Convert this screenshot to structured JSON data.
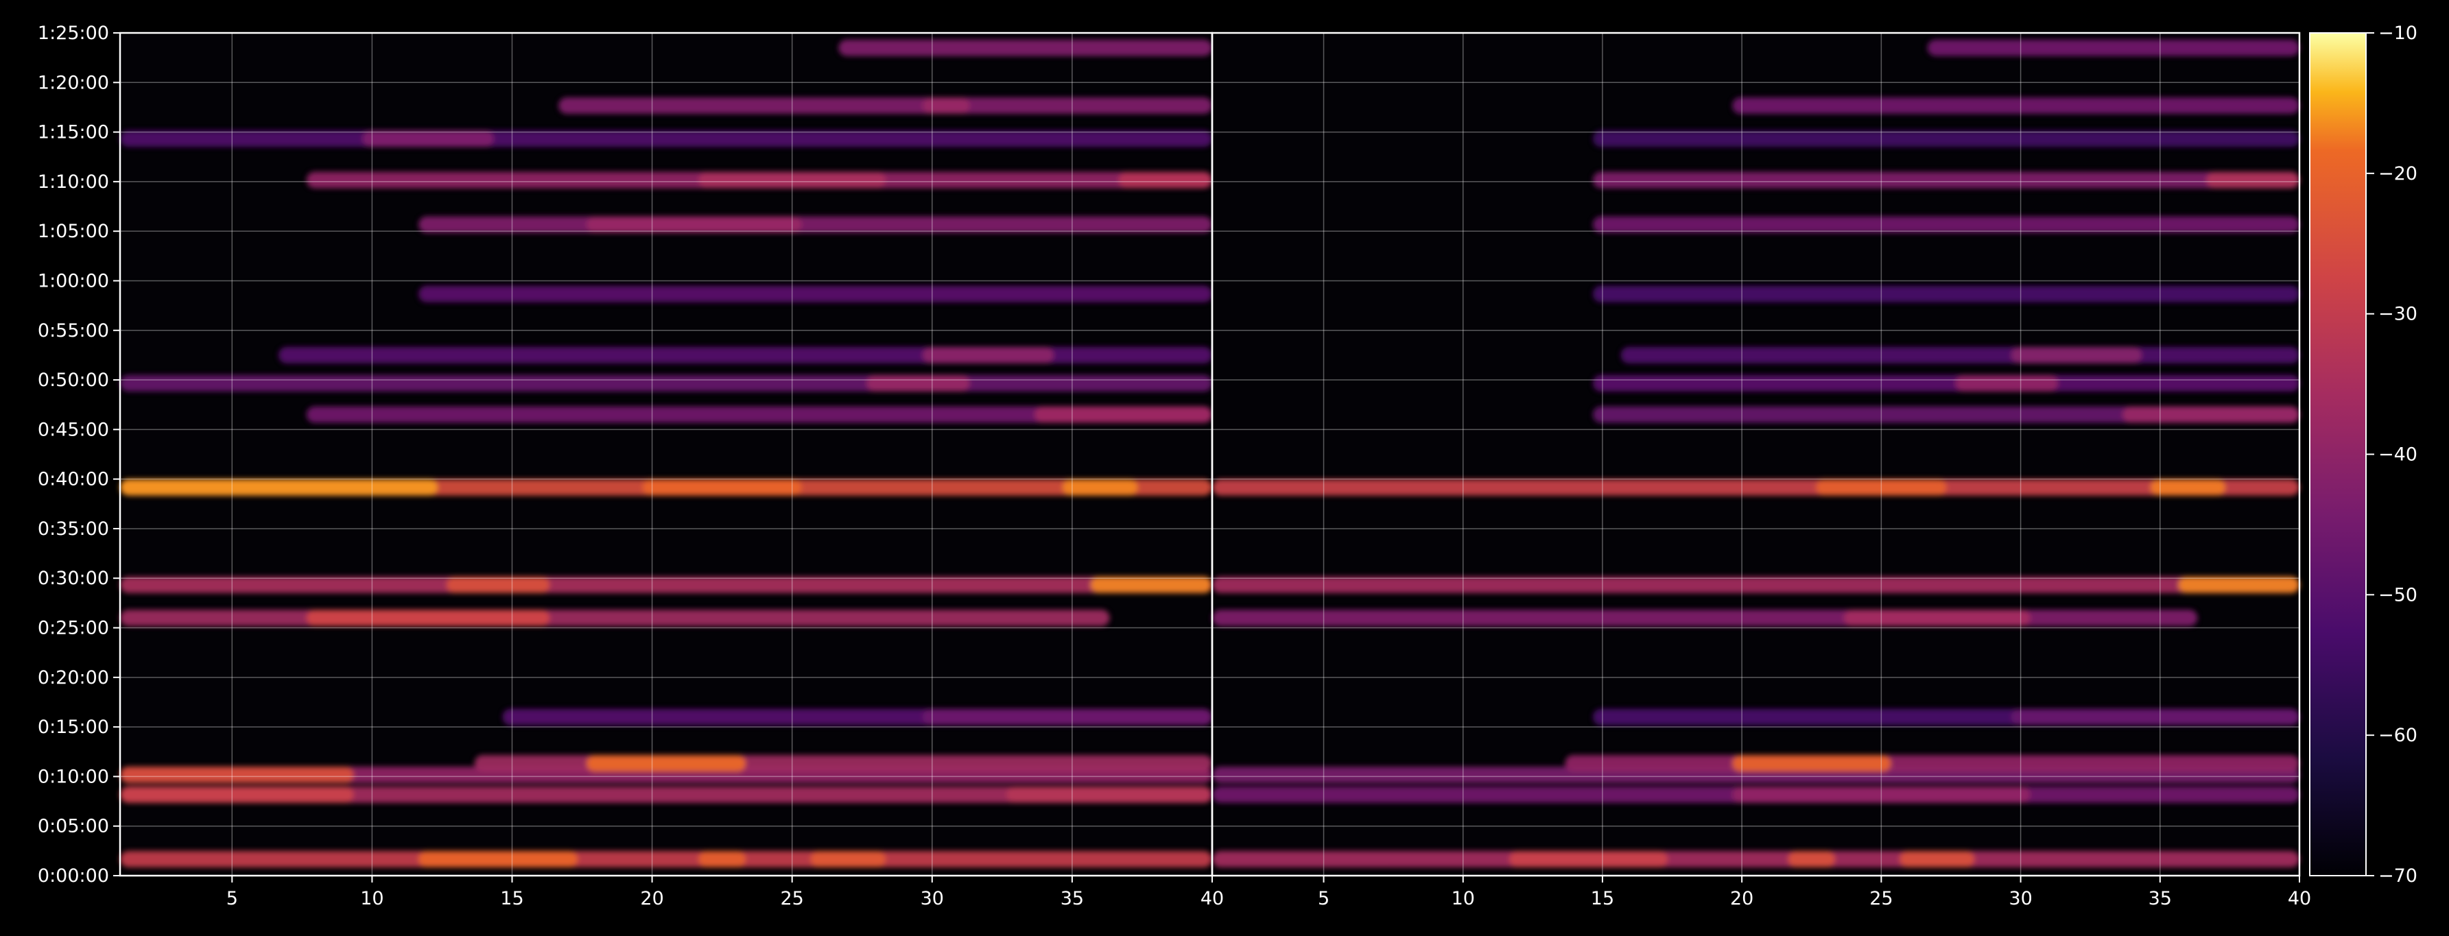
{
  "chart_data": {
    "type": "heatmap",
    "title": "",
    "xlabel": "",
    "ylabel": "",
    "grid": true,
    "panels": [
      {
        "name": "",
        "xlim": [
          1,
          40
        ],
        "xticks": [
          5,
          10,
          15,
          20,
          25,
          30,
          35,
          40
        ]
      },
      {
        "name": "",
        "xlim": [
          1,
          40
        ],
        "xticks": [
          5,
          10,
          15,
          20,
          25,
          30,
          35,
          40
        ]
      }
    ],
    "ylim_seconds": [
      0,
      5100
    ],
    "yticks": [
      {
        "value": 0,
        "label": "0:00:00"
      },
      {
        "value": 300,
        "label": "0:05:00"
      },
      {
        "value": 600,
        "label": "0:10:00"
      },
      {
        "value": 900,
        "label": "0:15:00"
      },
      {
        "value": 1200,
        "label": "0:20:00"
      },
      {
        "value": 1500,
        "label": "0:25:00"
      },
      {
        "value": 1800,
        "label": "0:30:00"
      },
      {
        "value": 2100,
        "label": "0:35:00"
      },
      {
        "value": 2400,
        "label": "0:40:00"
      },
      {
        "value": 2700,
        "label": "0:45:00"
      },
      {
        "value": 3000,
        "label": "0:50:00"
      },
      {
        "value": 3300,
        "label": "0:55:00"
      },
      {
        "value": 3600,
        "label": "1:00:00"
      },
      {
        "value": 3900,
        "label": "1:05:00"
      },
      {
        "value": 4200,
        "label": "1:10:00"
      },
      {
        "value": 4500,
        "label": "1:15:00"
      },
      {
        "value": 4800,
        "label": "1:20:00"
      },
      {
        "value": 5100,
        "label": "1:25:00"
      }
    ],
    "colorbar": {
      "colormap": "inferno",
      "range": [
        -70,
        -10
      ],
      "ticks": [
        {
          "value": -10,
          "label": "−10"
        },
        {
          "value": -20,
          "label": "−20"
        },
        {
          "value": -30,
          "label": "−30"
        },
        {
          "value": -40,
          "label": "−40"
        },
        {
          "value": -50,
          "label": "−50"
        },
        {
          "value": -60,
          "label": "−60"
        },
        {
          "value": -70,
          "label": "−70"
        }
      ]
    },
    "rows": [
      {
        "t": 100,
        "panel1": [
          [
            1,
            40,
            -34
          ],
          [
            12,
            17,
            -26
          ],
          [
            22,
            23,
            -27
          ],
          [
            26,
            28,
            -28
          ]
        ],
        "panel2": [
          [
            1,
            40,
            -40
          ],
          [
            12,
            17,
            -33
          ],
          [
            22,
            23,
            -30
          ],
          [
            26,
            28,
            -30
          ]
        ]
      },
      {
        "t": 490,
        "panel1": [
          [
            1,
            40,
            -40
          ],
          [
            1,
            9,
            -33
          ],
          [
            33,
            40,
            -37
          ]
        ],
        "panel2": [
          [
            1,
            40,
            -48
          ],
          [
            20,
            30,
            -43
          ]
        ]
      },
      {
        "t": 610,
        "panel1": [
          [
            1,
            40,
            -43
          ],
          [
            1,
            9,
            -30
          ]
        ],
        "panel2": [
          [
            1,
            40,
            -47
          ]
        ]
      },
      {
        "t": 680,
        "panel1": [
          [
            14,
            40,
            -41
          ],
          [
            18,
            23,
            -25
          ]
        ],
        "panel2": [
          [
            14,
            40,
            -43
          ],
          [
            20,
            25,
            -26
          ]
        ]
      },
      {
        "t": 960,
        "panel1": [
          [
            15,
            40,
            -53
          ],
          [
            30,
            40,
            -49
          ]
        ],
        "panel2": [
          [
            15,
            40,
            -55
          ],
          [
            30,
            40,
            -50
          ]
        ]
      },
      {
        "t": 1560,
        "panel1": [
          [
            1,
            36,
            -41
          ],
          [
            8,
            16,
            -32
          ]
        ],
        "panel2": [
          [
            1,
            36,
            -46
          ],
          [
            24,
            30,
            -40
          ]
        ]
      },
      {
        "t": 1760,
        "panel1": [
          [
            1,
            40,
            -39
          ],
          [
            13,
            16,
            -30
          ],
          [
            36,
            40,
            -22
          ]
        ],
        "panel2": [
          [
            1,
            40,
            -40
          ],
          [
            36,
            40,
            -22
          ]
        ]
      },
      {
        "t": 2350,
        "panel1": [
          [
            1,
            40,
            -30
          ],
          [
            1,
            12,
            -20
          ],
          [
            20,
            25,
            -26
          ],
          [
            35,
            37,
            -22
          ]
        ],
        "panel2": [
          [
            1,
            40,
            -33
          ],
          [
            23,
            27,
            -27
          ],
          [
            35,
            37,
            -23
          ]
        ]
      },
      {
        "t": 2790,
        "panel1": [
          [
            8,
            40,
            -48
          ],
          [
            34,
            40,
            -41
          ]
        ],
        "panel2": [
          [
            15,
            40,
            -50
          ],
          [
            34,
            40,
            -42
          ]
        ]
      },
      {
        "t": 2980,
        "panel1": [
          [
            1,
            40,
            -50
          ],
          [
            28,
            31,
            -42
          ]
        ],
        "panel2": [
          [
            15,
            40,
            -52
          ],
          [
            28,
            31,
            -43
          ]
        ]
      },
      {
        "t": 3150,
        "panel1": [
          [
            7,
            40,
            -53
          ],
          [
            30,
            34,
            -44
          ]
        ],
        "panel2": [
          [
            16,
            40,
            -54
          ],
          [
            30,
            34,
            -45
          ]
        ]
      },
      {
        "t": 3520,
        "panel1": [
          [
            12,
            40,
            -52
          ]
        ],
        "panel2": [
          [
            15,
            40,
            -55
          ]
        ]
      },
      {
        "t": 3940,
        "panel1": [
          [
            12,
            40,
            -46
          ],
          [
            18,
            25,
            -42
          ]
        ],
        "panel2": [
          [
            15,
            40,
            -48
          ]
        ]
      },
      {
        "t": 4210,
        "panel1": [
          [
            8,
            40,
            -43
          ],
          [
            22,
            28,
            -39
          ],
          [
            37,
            40,
            -37
          ]
        ],
        "panel2": [
          [
            15,
            40,
            -46
          ],
          [
            37,
            40,
            -38
          ]
        ]
      },
      {
        "t": 4460,
        "panel1": [
          [
            1,
            40,
            -54
          ],
          [
            10,
            14,
            -46
          ]
        ],
        "panel2": [
          [
            15,
            40,
            -56
          ]
        ]
      },
      {
        "t": 4660,
        "panel1": [
          [
            17,
            40,
            -46
          ],
          [
            30,
            31,
            -42
          ]
        ],
        "panel2": [
          [
            20,
            40,
            -48
          ]
        ]
      },
      {
        "t": 5010,
        "panel1": [
          [
            27,
            40,
            -46
          ]
        ],
        "panel2": [
          [
            27,
            40,
            -48
          ]
        ]
      }
    ]
  }
}
